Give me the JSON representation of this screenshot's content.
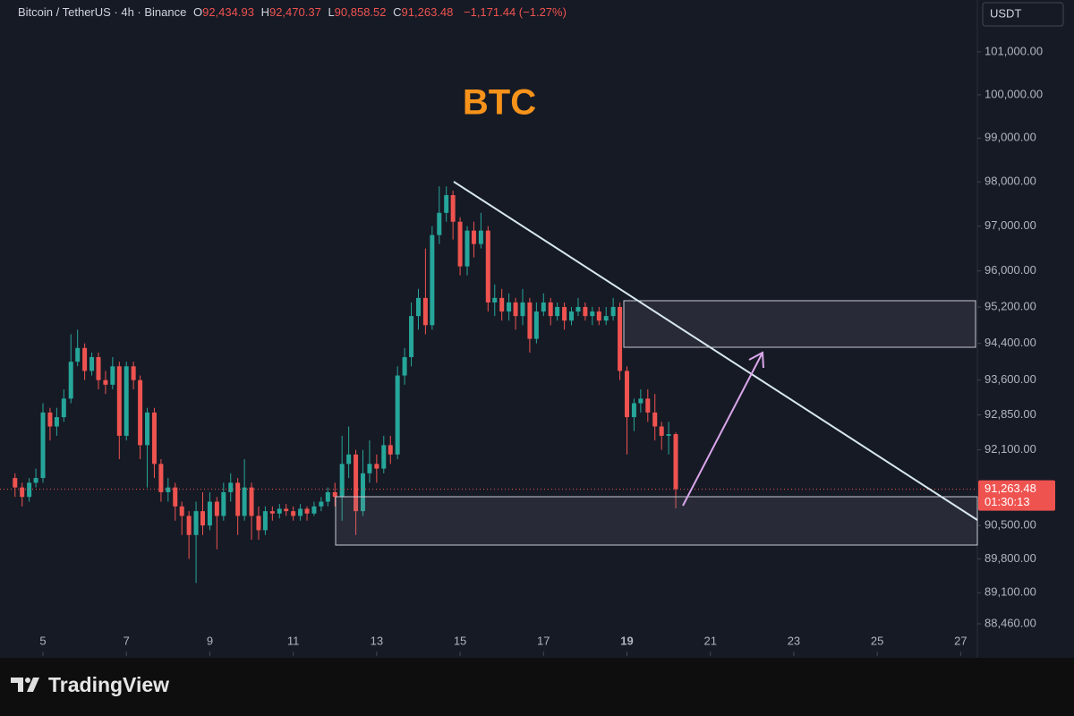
{
  "chart_data": {
    "type": "candlestick",
    "title": "BTC",
    "header": {
      "symbol": "Bitcoin / TetherUS · 4h · Binance",
      "o": "O",
      "open": "92,434.93",
      "h": "H",
      "high": "92,470.37",
      "l": "L",
      "low": "90,858.52",
      "c": "C",
      "close": "91,263.48",
      "change": "−1,171.44 (−1.27%)"
    },
    "currency": "USDT",
    "x": [
      4.33,
      4.5,
      4.67,
      4.83,
      5,
      5.17,
      5.33,
      5.5,
      5.67,
      5.83,
      6,
      6.17,
      6.33,
      6.5,
      6.67,
      6.83,
      7,
      7.17,
      7.33,
      7.5,
      7.67,
      7.83,
      8,
      8.17,
      8.33,
      8.5,
      8.67,
      8.83,
      9,
      9.17,
      9.33,
      9.5,
      9.67,
      9.83,
      10,
      10.17,
      10.33,
      10.5,
      10.67,
      10.83,
      11,
      11.17,
      11.33,
      11.5,
      11.67,
      11.83,
      12,
      12.17,
      12.33,
      12.5,
      12.67,
      12.83,
      13,
      13.17,
      13.33,
      13.5,
      13.67,
      13.83,
      14,
      14.17,
      14.33,
      14.5,
      14.67,
      14.83,
      15,
      15.17,
      15.33,
      15.5,
      15.67,
      15.83,
      16,
      16.17,
      16.33,
      16.5,
      16.67,
      16.83,
      17,
      17.17,
      17.33,
      17.5,
      17.67,
      17.83,
      18,
      18.17,
      18.33,
      18.5,
      18.67,
      18.83,
      19,
      19.17,
      19.33,
      19.5,
      19.67,
      19.83,
      20,
      20.17
    ],
    "open": [
      91500,
      91300,
      91100,
      91400,
      91500,
      92900,
      92600,
      92800,
      93200,
      94000,
      94300,
      93800,
      94100,
      93600,
      93500,
      93900,
      92400,
      93900,
      93600,
      92200,
      92900,
      91800,
      91200,
      91300,
      90900,
      90700,
      90300,
      90800,
      90500,
      91000,
      90700,
      91200,
      91400,
      90700,
      91300,
      90700,
      90400,
      90800,
      90750,
      90850,
      90800,
      90700,
      90850,
      90750,
      90900,
      91000,
      91200,
      91100,
      91800,
      92000,
      90800,
      91600,
      91800,
      91700,
      92200,
      92000,
      93700,
      94100,
      95000,
      95400,
      94800,
      96800,
      97300,
      97700,
      97100,
      96100,
      96900,
      96600,
      96900,
      95300,
      95400,
      95100,
      95300,
      95000,
      95300,
      94500,
      95100,
      95300,
      95000,
      95200,
      94900,
      95100,
      95200,
      95000,
      95100,
      94900,
      95000,
      95200,
      93800,
      92800,
      93100,
      93200,
      92900,
      92600,
      92400,
      92434.93
    ],
    "high": [
      91600,
      91400,
      91500,
      91700,
      93100,
      93000,
      93000,
      93400,
      94600,
      94700,
      94400,
      94200,
      94200,
      93800,
      94100,
      94000,
      94000,
      94000,
      93700,
      93000,
      93000,
      91900,
      91500,
      91400,
      91000,
      90800,
      91000,
      91200,
      91200,
      91100,
      91400,
      91600,
      91500,
      91900,
      91400,
      90900,
      90900,
      90900,
      90950,
      90950,
      90900,
      90950,
      90900,
      91000,
      91100,
      91300,
      91400,
      92400,
      92600,
      92100,
      92100,
      92300,
      92000,
      92400,
      92400,
      93900,
      94300,
      95300,
      95600,
      96500,
      97000,
      97900,
      97900,
      97800,
      97200,
      97000,
      97100,
      97300,
      97000,
      95700,
      95600,
      95500,
      95400,
      95600,
      95400,
      95300,
      95500,
      95400,
      95300,
      95300,
      95200,
      95400,
      95300,
      95200,
      95200,
      95200,
      95400,
      95300,
      93900,
      93200,
      93400,
      93400,
      93300,
      92700,
      92700,
      92470.37
    ],
    "low": [
      91100,
      90900,
      91000,
      91300,
      91400,
      92300,
      92400,
      92700,
      93100,
      93900,
      93600,
      93700,
      93400,
      93300,
      93400,
      91900,
      92300,
      93400,
      91900,
      91300,
      91500,
      91000,
      91000,
      90600,
      90300,
      89800,
      89300,
      90300,
      90400,
      90000,
      90600,
      91000,
      90300,
      90600,
      90200,
      90200,
      90300,
      90600,
      90650,
      90700,
      90600,
      90600,
      90600,
      90700,
      90800,
      90900,
      90900,
      90600,
      91500,
      90300,
      90700,
      91400,
      91400,
      91600,
      91800,
      91900,
      93500,
      93900,
      94700,
      94600,
      94700,
      96600,
      97100,
      96700,
      95900,
      95900,
      96300,
      96500,
      95100,
      95000,
      94900,
      94900,
      94700,
      94800,
      94200,
      94400,
      95000,
      94800,
      94900,
      94700,
      94800,
      95000,
      94900,
      94800,
      94800,
      94800,
      94900,
      93600,
      92000,
      92500,
      92900,
      92700,
      92300,
      92100,
      92000,
      90858.52
    ],
    "close": [
      91300,
      91100,
      91400,
      91500,
      92900,
      92600,
      92800,
      93200,
      94000,
      94300,
      93800,
      94100,
      93600,
      93500,
      93900,
      92400,
      93900,
      93600,
      92200,
      92900,
      91800,
      91200,
      91300,
      90900,
      90700,
      90300,
      90800,
      90500,
      91000,
      90700,
      91200,
      91400,
      90700,
      91300,
      90700,
      90400,
      90800,
      90750,
      90850,
      90800,
      90700,
      90850,
      90750,
      90900,
      91000,
      91200,
      91100,
      91800,
      92000,
      90800,
      91600,
      91800,
      91700,
      92200,
      92000,
      93700,
      94100,
      95000,
      95400,
      94800,
      96800,
      97300,
      97700,
      97100,
      96100,
      96900,
      96600,
      96900,
      95300,
      95400,
      95100,
      95300,
      95000,
      95300,
      94500,
      95100,
      95300,
      95000,
      95200,
      94900,
      95100,
      95200,
      95000,
      95100,
      94900,
      95000,
      95200,
      93800,
      92800,
      93100,
      93200,
      92900,
      92600,
      92400,
      92434.93,
      91263.48
    ],
    "up_color": "#26a69a",
    "down_color": "#ef5350",
    "xlim": [
      3.97,
      27.4
    ],
    "xticks": [
      5,
      7,
      9,
      11,
      13,
      15,
      17,
      19,
      21,
      23,
      25,
      27
    ],
    "ylim": [
      87893,
      102220
    ],
    "log_scale": true,
    "yticks": [
      {
        "value": 88460,
        "label": "88,460.00"
      },
      {
        "value": 89100,
        "label": "89,100.00"
      },
      {
        "value": 89800,
        "label": "89,800.00"
      },
      {
        "value": 90500,
        "label": "90,500.00"
      },
      {
        "value": 92100,
        "label": "92,100.00"
      },
      {
        "value": 92850,
        "label": "92,850.00"
      },
      {
        "value": 93600,
        "label": "93,600.00"
      },
      {
        "value": 94400,
        "label": "94,400.00"
      },
      {
        "value": 95200,
        "label": "95,200.00"
      },
      {
        "value": 96000,
        "label": "96,000.00"
      },
      {
        "value": 97000,
        "label": "97,000.00"
      },
      {
        "value": 98000,
        "label": "98,000.00"
      },
      {
        "value": 99000,
        "label": "99,000.00"
      },
      {
        "value": 100000,
        "label": "100,000.00"
      },
      {
        "value": 101000,
        "label": "101,000.00"
      }
    ],
    "last_price": {
      "value": 91263.48,
      "label": "91,263.48"
    },
    "countdown": "01:30:13"
  },
  "brand": "TradingView"
}
